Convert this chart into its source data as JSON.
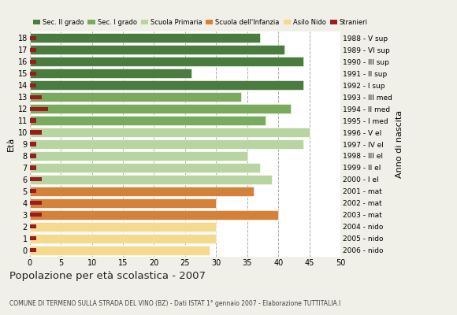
{
  "ages": [
    0,
    1,
    2,
    3,
    4,
    5,
    6,
    7,
    8,
    9,
    10,
    11,
    12,
    13,
    14,
    15,
    16,
    17,
    18
  ],
  "right_labels": [
    "2006 - nido",
    "2005 - nido",
    "2004 - nido",
    "2003 - mat",
    "2002 - mat",
    "2001 - mat",
    "2000 - I el",
    "1999 - II el",
    "1998 - III el",
    "1997 - IV el",
    "1996 - V el",
    "1995 - I med",
    "1994 - II med",
    "1993 - III med",
    "1992 - I sup",
    "1991 - II sup",
    "1990 - III sup",
    "1989 - VI sup",
    "1988 - V sup"
  ],
  "bar_values": [
    29,
    30,
    30,
    40,
    30,
    36,
    39,
    37,
    35,
    44,
    45,
    38,
    42,
    34,
    44,
    26,
    44,
    41,
    37
  ],
  "stranieri_values": [
    1,
    1,
    1,
    2,
    2,
    1,
    2,
    1,
    1,
    1,
    2,
    1,
    3,
    2,
    1,
    1,
    1,
    1,
    1
  ],
  "bar_colors": [
    "#f5d98c",
    "#f5d98c",
    "#f5d98c",
    "#d4813a",
    "#d4813a",
    "#d4813a",
    "#b8d4a0",
    "#b8d4a0",
    "#b8d4a0",
    "#b8d4a0",
    "#b8d4a0",
    "#7aaa5e",
    "#7aaa5e",
    "#7aaa5e",
    "#4a7c3f",
    "#4a7c3f",
    "#4a7c3f",
    "#4a7c3f",
    "#4a7c3f"
  ],
  "legend_labels": [
    "Sec. II grado",
    "Sec. I grado",
    "Scuola Primaria",
    "Scuola dell'Infanzia",
    "Asilo Nido",
    "Stranieri"
  ],
  "legend_colors": [
    "#4a7c3f",
    "#7aaa5e",
    "#b8d4a0",
    "#d4813a",
    "#f5d98c",
    "#9b1c1c"
  ],
  "stranieri_color": "#9b1c1c",
  "title": "Popolazione per età scolastica - 2007",
  "subtitle": "COMUNE DI TERMENO SULLA STRADA DEL VINO (BZ) - Dati ISTAT 1° gennaio 2007 - Elaborazione TUTTITALIA.I",
  "xlabel_eta": "Età",
  "xlabel_anno": "Anno di nascita",
  "xlim": [
    0,
    50
  ],
  "xticks": [
    0,
    5,
    10,
    15,
    20,
    25,
    30,
    35,
    40,
    45,
    50
  ],
  "bar_height": 0.82,
  "background_color": "#f0f0e8",
  "plot_bg_color": "#ffffff"
}
